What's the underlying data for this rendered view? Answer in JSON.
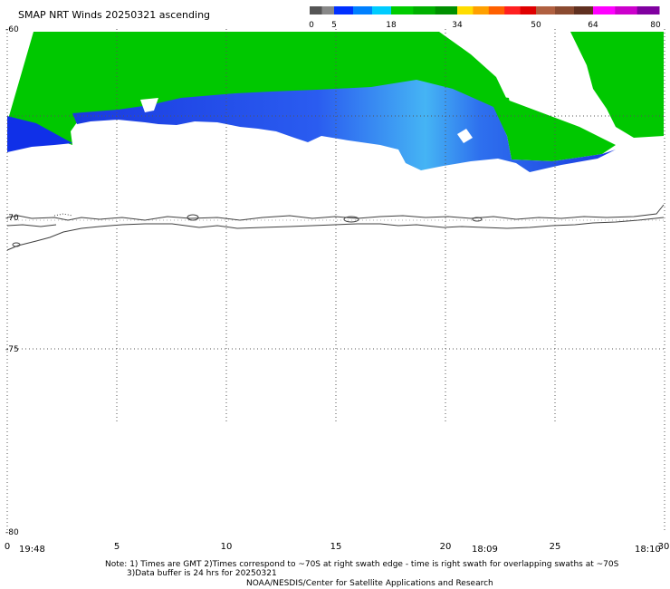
{
  "title": "SMAP NRT Winds 20250321 ascending",
  "colorbar": {
    "ticks": [
      "0",
      "5",
      "18",
      "34",
      "50",
      "64",
      "80"
    ],
    "segments": [
      {
        "color": "#555555"
      },
      {
        "color": "#888888"
      },
      {
        "color": "#0030ff"
      },
      {
        "color": "#0080ff"
      },
      {
        "color": "#00ccff"
      },
      {
        "color": "#00cc00"
      },
      {
        "color": "#00b000"
      },
      {
        "color": "#009000"
      },
      {
        "color": "#ffdd00"
      },
      {
        "color": "#ffa000"
      },
      {
        "color": "#ff6000"
      },
      {
        "color": "#ff2020"
      },
      {
        "color": "#e00000"
      },
      {
        "color": "#b06040"
      },
      {
        "color": "#8a4a30"
      },
      {
        "color": "#603020"
      },
      {
        "color": "#ff00ff"
      },
      {
        "color": "#cc00cc"
      },
      {
        "color": "#8000a0"
      }
    ]
  },
  "axes": {
    "lat_labels": [
      "-60",
      "-70",
      "-75",
      "-80"
    ],
    "lon_labels": [
      "0",
      "5",
      "10",
      "15",
      "20",
      "25",
      "30"
    ]
  },
  "times": [
    "19:48",
    "18:09",
    "18:10"
  ],
  "colors": {
    "green": "#00c800",
    "blue": "#1030e8",
    "light_blue": "#40b8f0",
    "coast": "#404040",
    "grid": "#555555"
  },
  "notes": {
    "line1": "Note: 1) Times are GMT 2)Times correspond to ~70S at right swath edge - time is right swath for overlapping swaths at ~70S",
    "line2": "3)Data buffer is 24 hrs for 20250321",
    "line3": "NOAA/NESDIS/Center for Satellite Applications and Research"
  }
}
